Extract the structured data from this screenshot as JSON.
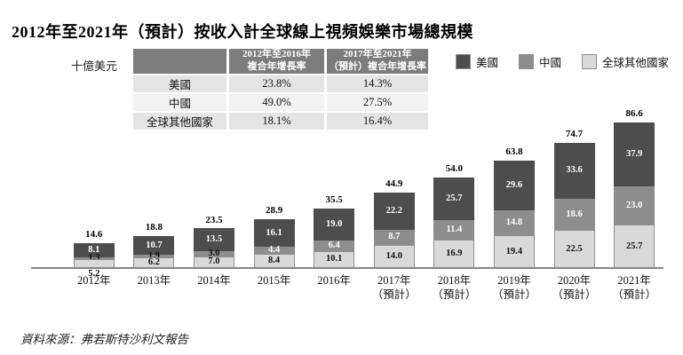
{
  "title": "2012年至2021年（預計）按收入計全球線上視頻娛樂市場總規模",
  "unit_label": "十億美元",
  "source_note": "資料來源：弗若斯特沙利文報告",
  "growth_table": {
    "col_headers": [
      {
        "line1": "2012年至2016年",
        "line2": "複合年增長率"
      },
      {
        "line1": "2017年至2021年",
        "line2": "（預計）複合年增長率"
      }
    ],
    "rows": [
      {
        "label": "美國",
        "values": [
          "23.8%",
          "14.3%"
        ]
      },
      {
        "label": "中國",
        "values": [
          "49.0%",
          "27.5%"
        ]
      },
      {
        "label": "全球其他國家",
        "values": [
          "18.1%",
          "16.4%"
        ]
      }
    ]
  },
  "legend": [
    {
      "label": "美國",
      "color": "#4d4d4d"
    },
    {
      "label": "中國",
      "color": "#8d8d8d"
    },
    {
      "label": "全球其他國家",
      "color": "#d9d9d9"
    }
  ],
  "colors": {
    "us": "#4d4d4d",
    "china": "#8d8d8d",
    "rest": "#d9d9d9",
    "rest_border": "#909090",
    "axis": "#858585"
  },
  "chart_data": {
    "type": "bar",
    "stacked": true,
    "title": "2012年至2021年（預計）按收入計全球線上視頻娛樂市場總規模",
    "ylabel": "十億美元",
    "ylim": [
      0,
      90
    ],
    "grid": false,
    "legend_position": "top-right",
    "categories": [
      {
        "year": "2012年",
        "note": ""
      },
      {
        "year": "2013年",
        "note": ""
      },
      {
        "year": "2014年",
        "note": ""
      },
      {
        "year": "2015年",
        "note": ""
      },
      {
        "year": "2016年",
        "note": ""
      },
      {
        "year": "2017年",
        "note": "（預計）"
      },
      {
        "year": "2018年",
        "note": "（預計）"
      },
      {
        "year": "2019年",
        "note": "（預計）"
      },
      {
        "year": "2020年",
        "note": "（預計）"
      },
      {
        "year": "2021年",
        "note": "（預計）"
      }
    ],
    "series": [
      {
        "name": "美國",
        "color": "#4d4d4d",
        "values": [
          8.1,
          10.7,
          13.5,
          16.1,
          19.0,
          22.2,
          25.7,
          29.6,
          33.6,
          37.9
        ]
      },
      {
        "name": "中國",
        "color": "#8d8d8d",
        "values": [
          1.3,
          1.9,
          3.0,
          4.4,
          6.4,
          8.7,
          11.4,
          14.8,
          18.6,
          23.0
        ]
      },
      {
        "name": "全球其他國家",
        "color": "#d9d9d9",
        "values": [
          5.2,
          6.2,
          7.0,
          8.4,
          10.1,
          14.0,
          16.9,
          19.4,
          22.5,
          25.7
        ]
      }
    ],
    "totals": [
      14.6,
      18.8,
      23.5,
      28.9,
      35.5,
      44.9,
      54.0,
      63.8,
      74.7,
      86.6
    ]
  }
}
